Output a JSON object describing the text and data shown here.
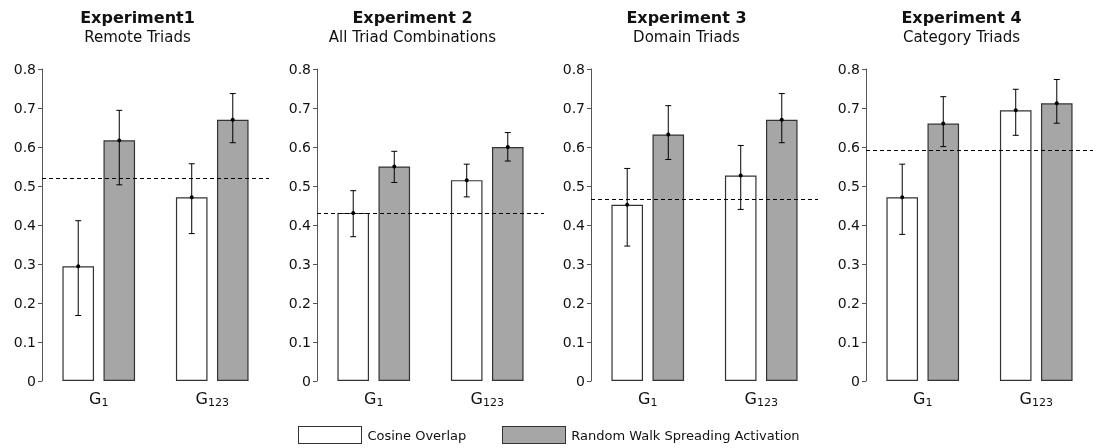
{
  "chart_data": [
    {
      "type": "bar",
      "title": "Experiment1",
      "subtitle": "Remote Triads",
      "categories": [
        "G$_{1}$",
        "G$_{123}$"
      ],
      "ylim": [
        0,
        0.8
      ],
      "yticks": [
        0,
        0.1,
        0.2,
        0.3,
        0.4,
        0.5,
        0.6,
        0.7,
        0.8
      ],
      "grid": false,
      "legend": "bottom",
      "series": [
        {
          "name": "Cosine Overlap",
          "color": "#ffffff",
          "values": [
            0.294,
            0.471
          ],
          "errors": [
            [
              0.168,
              0.411
            ],
            [
              0.378,
              0.557
            ]
          ]
        },
        {
          "name": "Random Walk Spreading Activation",
          "color": "#a6a6a6",
          "values": [
            0.617,
            0.67
          ],
          "errors": [
            [
              0.503,
              0.694
            ],
            [
              0.611,
              0.737
            ]
          ]
        }
      ],
      "ref_lines": [
        {
          "axis": "y",
          "value": 0.52,
          "line_style": "dashed"
        }
      ]
    },
    {
      "type": "bar",
      "title": "Experiment 2",
      "subtitle": "All Triad Combinations",
      "categories": [
        "G$_{1}$",
        "G$_{123}$"
      ],
      "ylim": [
        0,
        0.8
      ],
      "yticks": [
        0,
        0.1,
        0.2,
        0.3,
        0.4,
        0.5,
        0.6,
        0.7,
        0.8
      ],
      "grid": false,
      "series": [
        {
          "color": "#ffffff",
          "values": [
            0.431,
            0.515
          ],
          "errors": [
            [
              0.37,
              0.488
            ],
            [
              0.472,
              0.556
            ]
          ]
        },
        {
          "color": "#a6a6a6",
          "values": [
            0.55,
            0.6
          ],
          "errors": [
            [
              0.509,
              0.589
            ],
            [
              0.564,
              0.637
            ]
          ]
        }
      ],
      "ref_lines": [
        {
          "axis": "y",
          "value": 0.43,
          "line_style": "dashed"
        }
      ]
    },
    {
      "type": "bar",
      "title": "Experiment 3",
      "subtitle": "Domain Triads",
      "categories": [
        "G$_{1}$",
        "G$_{123}$"
      ],
      "ylim": [
        0,
        0.8
      ],
      "yticks": [
        0,
        0.1,
        0.2,
        0.3,
        0.4,
        0.5,
        0.6,
        0.7,
        0.8
      ],
      "grid": false,
      "series": [
        {
          "color": "#ffffff",
          "values": [
            0.452,
            0.527
          ],
          "errors": [
            [
              0.346,
              0.545
            ],
            [
              0.44,
              0.604
            ]
          ]
        },
        {
          "color": "#a6a6a6",
          "values": [
            0.632,
            0.67
          ],
          "errors": [
            [
              0.568,
              0.706
            ],
            [
              0.611,
              0.737
            ]
          ]
        }
      ],
      "ref_lines": [
        {
          "axis": "y",
          "value": 0.467,
          "line_style": "dashed"
        }
      ]
    },
    {
      "type": "bar",
      "title": "Experiment 4",
      "subtitle": "Category Triads",
      "categories": [
        "G$_{1}$",
        "G$_{123}$"
      ],
      "ylim": [
        0,
        0.8
      ],
      "yticks": [
        0,
        0.1,
        0.2,
        0.3,
        0.4,
        0.5,
        0.6,
        0.7,
        0.8
      ],
      "grid": false,
      "series": [
        {
          "color": "#ffffff",
          "values": [
            0.471,
            0.694
          ],
          "errors": [
            [
              0.376,
              0.556
            ],
            [
              0.63,
              0.748
            ]
          ]
        },
        {
          "color": "#a6a6a6",
          "values": [
            0.66,
            0.712
          ],
          "errors": [
            [
              0.601,
              0.729
            ],
            [
              0.661,
              0.773
            ]
          ]
        }
      ],
      "ref_lines": [
        {
          "axis": "y",
          "value": 0.592,
          "line_style": "dashed"
        }
      ]
    }
  ]
}
